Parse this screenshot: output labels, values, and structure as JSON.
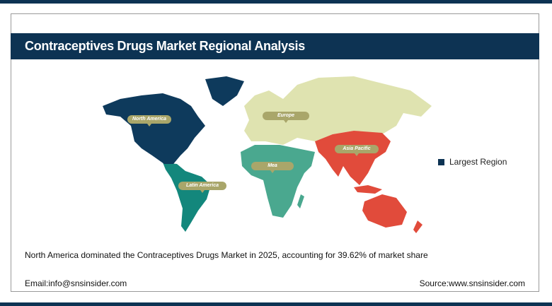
{
  "title": "Contraceptives Drugs Market Regional Analysis",
  "regions": [
    {
      "label": "North America",
      "color": "#0e3a5c",
      "largest": true
    },
    {
      "label": "Europe",
      "color": "#dfe3b0"
    },
    {
      "label": "Asia Pacific",
      "color": "#e14b3b"
    },
    {
      "label": "Mea",
      "color": "#4aa88f"
    },
    {
      "label": "Latin America",
      "color": "#13877c"
    }
  ],
  "legend": {
    "label": "Largest Region",
    "color": "#0d3353"
  },
  "summary": "North America dominated the Contraceptives Drugs Market in 2025, accounting for 39.62% of market share",
  "footer": {
    "email": "Email:info@snsinsider.com",
    "source": "Source:www.snsinsider.com"
  }
}
